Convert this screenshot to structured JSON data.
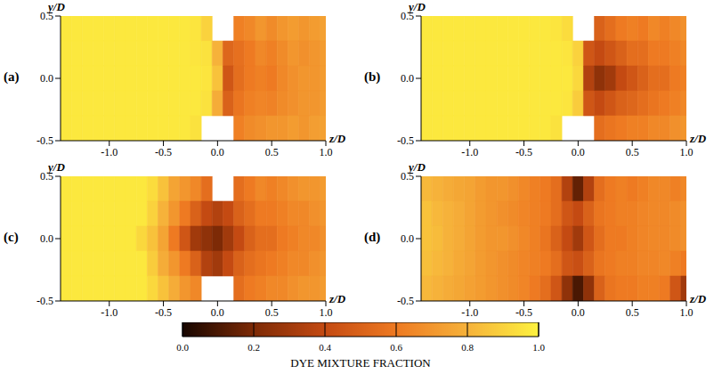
{
  "chart_data": [
    {
      "type": "heatmap",
      "title": "(a)",
      "x_label": "z/D",
      "y_label": "y/D",
      "xlim": [
        -1.45,
        1.0
      ],
      "xticks": [
        {
          "value": -1,
          "label": "-1.0"
        },
        -0.5,
        {
          "value": 0,
          "label": "0.0"
        },
        0.5,
        {
          "value": 1,
          "label": "1.0"
        }
      ],
      "ylim": [
        -0.5,
        0.5
      ],
      "yticks": [
        -0.5,
        {
          "value": 0,
          "label": "0.0"
        },
        0.5
      ],
      "x": [
        -1.4,
        -1.3,
        -1.2,
        -1.1,
        -1.0,
        -0.9,
        -0.8,
        -0.7,
        -0.6,
        -0.5,
        -0.4,
        -0.3,
        -0.2,
        -0.1,
        0.0,
        0.1,
        0.2,
        0.3,
        0.4,
        0.5,
        0.6,
        0.7,
        0.8,
        0.9,
        1.0
      ],
      "y": [
        0.4,
        0.2,
        0.0,
        -0.2,
        -0.4
      ],
      "cells": [
        [
          0.97,
          0.97,
          0.97,
          0.97,
          0.97,
          0.97,
          0.97,
          0.97,
          0.97,
          0.97,
          0.97,
          0.97,
          0.96,
          0.9,
          null,
          null,
          0.62,
          0.65,
          0.7,
          0.66,
          0.7,
          0.72,
          0.7,
          0.72,
          0.74
        ],
        [
          0.97,
          0.97,
          0.97,
          0.97,
          0.97,
          0.97,
          0.97,
          0.97,
          0.97,
          0.97,
          0.97,
          0.97,
          0.96,
          0.95,
          0.8,
          0.52,
          0.56,
          0.6,
          0.65,
          0.62,
          0.66,
          0.7,
          0.68,
          0.7,
          0.72
        ],
        [
          0.97,
          0.97,
          0.97,
          0.97,
          0.97,
          0.97,
          0.97,
          0.97,
          0.97,
          0.97,
          0.97,
          0.97,
          0.97,
          0.96,
          0.85,
          0.45,
          0.55,
          0.6,
          0.62,
          0.6,
          0.65,
          0.68,
          0.7,
          0.7,
          0.72
        ],
        [
          0.97,
          0.97,
          0.97,
          0.97,
          0.97,
          0.97,
          0.97,
          0.97,
          0.97,
          0.97,
          0.97,
          0.97,
          0.97,
          0.95,
          0.78,
          0.5,
          0.58,
          0.62,
          0.64,
          0.63,
          0.66,
          0.68,
          0.7,
          0.7,
          0.72
        ],
        [
          0.97,
          0.97,
          0.97,
          0.97,
          0.97,
          0.97,
          0.97,
          0.97,
          0.97,
          0.97,
          0.97,
          0.97,
          0.95,
          null,
          null,
          null,
          0.62,
          0.66,
          0.68,
          0.7,
          0.7,
          0.72,
          0.7,
          0.73,
          0.74
        ]
      ]
    },
    {
      "type": "heatmap",
      "title": "(b)",
      "x_label": "z/D",
      "y_label": "y/D",
      "xlim": [
        -1.45,
        1.0
      ],
      "xticks": [
        {
          "value": -1,
          "label": "-1.0"
        },
        -0.5,
        {
          "value": 0,
          "label": "0.0"
        },
        0.5,
        {
          "value": 1,
          "label": "1.0"
        }
      ],
      "ylim": [
        -0.5,
        0.5
      ],
      "yticks": [
        -0.5,
        {
          "value": 0,
          "label": "0.0"
        },
        0.5
      ],
      "x": [
        -1.4,
        -1.3,
        -1.2,
        -1.1,
        -1.0,
        -0.9,
        -0.8,
        -0.7,
        -0.6,
        -0.5,
        -0.4,
        -0.3,
        -0.2,
        -0.1,
        0.0,
        0.1,
        0.2,
        0.3,
        0.4,
        0.5,
        0.6,
        0.7,
        0.8,
        0.9,
        1.0
      ],
      "y": [
        0.4,
        0.2,
        0.0,
        -0.2,
        -0.4
      ],
      "cells": [
        [
          0.97,
          0.97,
          0.97,
          0.97,
          0.97,
          0.97,
          0.97,
          0.97,
          0.97,
          0.97,
          0.97,
          0.97,
          0.96,
          0.93,
          null,
          null,
          0.5,
          0.55,
          0.6,
          0.62,
          0.6,
          0.65,
          0.62,
          0.65,
          0.68
        ],
        [
          0.97,
          0.97,
          0.97,
          0.97,
          0.97,
          0.97,
          0.97,
          0.97,
          0.97,
          0.97,
          0.97,
          0.97,
          0.97,
          0.96,
          0.9,
          0.45,
          0.4,
          0.45,
          0.5,
          0.55,
          0.55,
          0.6,
          0.6,
          0.62,
          0.65
        ],
        [
          0.97,
          0.97,
          0.97,
          0.97,
          0.97,
          0.97,
          0.97,
          0.97,
          0.97,
          0.97,
          0.97,
          0.97,
          0.97,
          0.97,
          0.92,
          0.35,
          0.25,
          0.3,
          0.4,
          0.45,
          0.5,
          0.55,
          0.55,
          0.6,
          0.62
        ],
        [
          0.97,
          0.97,
          0.97,
          0.97,
          0.97,
          0.97,
          0.97,
          0.97,
          0.97,
          0.97,
          0.97,
          0.97,
          0.97,
          0.96,
          0.88,
          0.45,
          0.4,
          0.45,
          0.5,
          0.52,
          0.55,
          0.58,
          0.6,
          0.62,
          0.65
        ],
        [
          0.97,
          0.97,
          0.97,
          0.97,
          0.97,
          0.97,
          0.97,
          0.97,
          0.97,
          0.97,
          0.97,
          0.97,
          0.95,
          null,
          null,
          null,
          0.55,
          0.58,
          0.6,
          0.62,
          0.62,
          0.65,
          0.65,
          0.68,
          0.7
        ]
      ]
    },
    {
      "type": "heatmap",
      "title": "(c)",
      "x_label": "z/D",
      "y_label": "y/D",
      "xlim": [
        -1.45,
        1.0
      ],
      "xticks": [
        {
          "value": -1,
          "label": "-1.0"
        },
        -0.5,
        {
          "value": 0,
          "label": "0.0"
        },
        0.5,
        {
          "value": 1,
          "label": "1.0"
        }
      ],
      "ylim": [
        -0.5,
        0.5
      ],
      "yticks": [
        -0.5,
        {
          "value": 0,
          "label": "0.0"
        },
        0.5
      ],
      "x": [
        -1.4,
        -1.3,
        -1.2,
        -1.1,
        -1.0,
        -0.9,
        -0.8,
        -0.7,
        -0.6,
        -0.5,
        -0.4,
        -0.3,
        -0.2,
        -0.1,
        0.0,
        0.1,
        0.2,
        0.3,
        0.4,
        0.5,
        0.6,
        0.7,
        0.8,
        0.9,
        1.0
      ],
      "y": [
        0.4,
        0.2,
        0.0,
        -0.2,
        -0.4
      ],
      "cells": [
        [
          0.97,
          0.97,
          0.97,
          0.97,
          0.97,
          0.97,
          0.97,
          0.97,
          0.93,
          0.85,
          0.75,
          0.7,
          0.65,
          0.55,
          null,
          null,
          0.55,
          0.6,
          0.65,
          0.62,
          0.65,
          0.68,
          0.7,
          0.7,
          0.72
        ],
        [
          0.97,
          0.97,
          0.97,
          0.97,
          0.97,
          0.97,
          0.97,
          0.97,
          0.9,
          0.8,
          0.7,
          0.6,
          0.5,
          0.4,
          0.35,
          0.4,
          0.5,
          0.55,
          0.6,
          0.6,
          0.62,
          0.65,
          0.65,
          0.68,
          0.7
        ],
        [
          0.97,
          0.97,
          0.97,
          0.97,
          0.97,
          0.97,
          0.97,
          0.92,
          0.85,
          0.75,
          0.6,
          0.45,
          0.3,
          0.25,
          0.2,
          0.3,
          0.4,
          0.5,
          0.55,
          0.55,
          0.6,
          0.62,
          0.65,
          0.65,
          0.68
        ],
        [
          0.97,
          0.97,
          0.97,
          0.97,
          0.97,
          0.97,
          0.97,
          0.97,
          0.88,
          0.78,
          0.7,
          0.6,
          0.5,
          0.35,
          0.3,
          0.4,
          0.5,
          0.55,
          0.58,
          0.6,
          0.62,
          0.65,
          0.65,
          0.68,
          0.7
        ],
        [
          0.97,
          0.97,
          0.97,
          0.97,
          0.97,
          0.97,
          0.97,
          0.97,
          0.92,
          0.85,
          0.78,
          0.7,
          0.65,
          null,
          null,
          null,
          0.55,
          0.6,
          0.62,
          0.65,
          0.65,
          0.68,
          0.7,
          0.7,
          0.72
        ]
      ]
    },
    {
      "type": "heatmap",
      "title": "(d)",
      "x_label": "z/D",
      "y_label": "y/D",
      "xlim": [
        -1.45,
        1.0
      ],
      "xticks": [
        {
          "value": -1,
          "label": "-1.0"
        },
        -0.5,
        {
          "value": 0,
          "label": "0.0"
        },
        0.5,
        {
          "value": 1,
          "label": "1.0"
        }
      ],
      "ylim": [
        -0.5,
        0.5
      ],
      "yticks": [
        -0.5,
        {
          "value": 0,
          "label": "0.0"
        },
        0.5
      ],
      "x": [
        -1.4,
        -1.3,
        -1.2,
        -1.1,
        -1.0,
        -0.9,
        -0.8,
        -0.7,
        -0.6,
        -0.5,
        -0.4,
        -0.3,
        -0.2,
        -0.1,
        0.0,
        0.1,
        0.2,
        0.3,
        0.4,
        0.5,
        0.6,
        0.7,
        0.8,
        0.9,
        1.0
      ],
      "y": [
        0.4,
        0.2,
        0.0,
        -0.2,
        -0.4
      ],
      "cells": [
        [
          0.82,
          0.8,
          0.78,
          0.76,
          0.75,
          0.72,
          0.7,
          0.7,
          0.68,
          0.65,
          0.62,
          0.6,
          0.55,
          0.35,
          0.15,
          0.35,
          0.55,
          0.6,
          0.62,
          0.6,
          0.62,
          0.65,
          0.65,
          0.62,
          0.65
        ],
        [
          0.85,
          0.82,
          0.8,
          0.78,
          0.75,
          0.72,
          0.7,
          0.68,
          0.66,
          0.64,
          0.62,
          0.6,
          0.55,
          0.45,
          0.4,
          0.5,
          0.58,
          0.6,
          0.62,
          0.62,
          0.64,
          0.65,
          0.65,
          0.66,
          0.68
        ],
        [
          0.85,
          0.83,
          0.8,
          0.78,
          0.75,
          0.72,
          0.7,
          0.7,
          0.68,
          0.65,
          0.62,
          0.58,
          0.5,
          0.4,
          0.3,
          0.45,
          0.55,
          0.6,
          0.6,
          0.62,
          0.64,
          0.65,
          0.65,
          0.66,
          0.68
        ],
        [
          0.84,
          0.82,
          0.8,
          0.77,
          0.75,
          0.72,
          0.7,
          0.68,
          0.66,
          0.64,
          0.62,
          0.6,
          0.55,
          0.45,
          0.42,
          0.5,
          0.58,
          0.6,
          0.62,
          0.62,
          0.64,
          0.64,
          0.65,
          0.62,
          0.6
        ],
        [
          0.82,
          0.8,
          0.78,
          0.76,
          0.74,
          0.72,
          0.7,
          0.68,
          0.66,
          0.64,
          0.6,
          0.55,
          0.45,
          0.25,
          0.1,
          0.25,
          0.5,
          0.58,
          0.6,
          0.6,
          0.62,
          0.62,
          0.6,
          0.45,
          0.3
        ]
      ]
    }
  ],
  "colorbar": {
    "label": "DYE MIXTURE FRACTION",
    "range": [
      0,
      1
    ],
    "ticks": [
      {
        "value": 0,
        "label": "0.0"
      },
      0.2,
      0.4,
      0.6,
      0.8,
      {
        "value": 1,
        "label": "1.0"
      }
    ]
  }
}
